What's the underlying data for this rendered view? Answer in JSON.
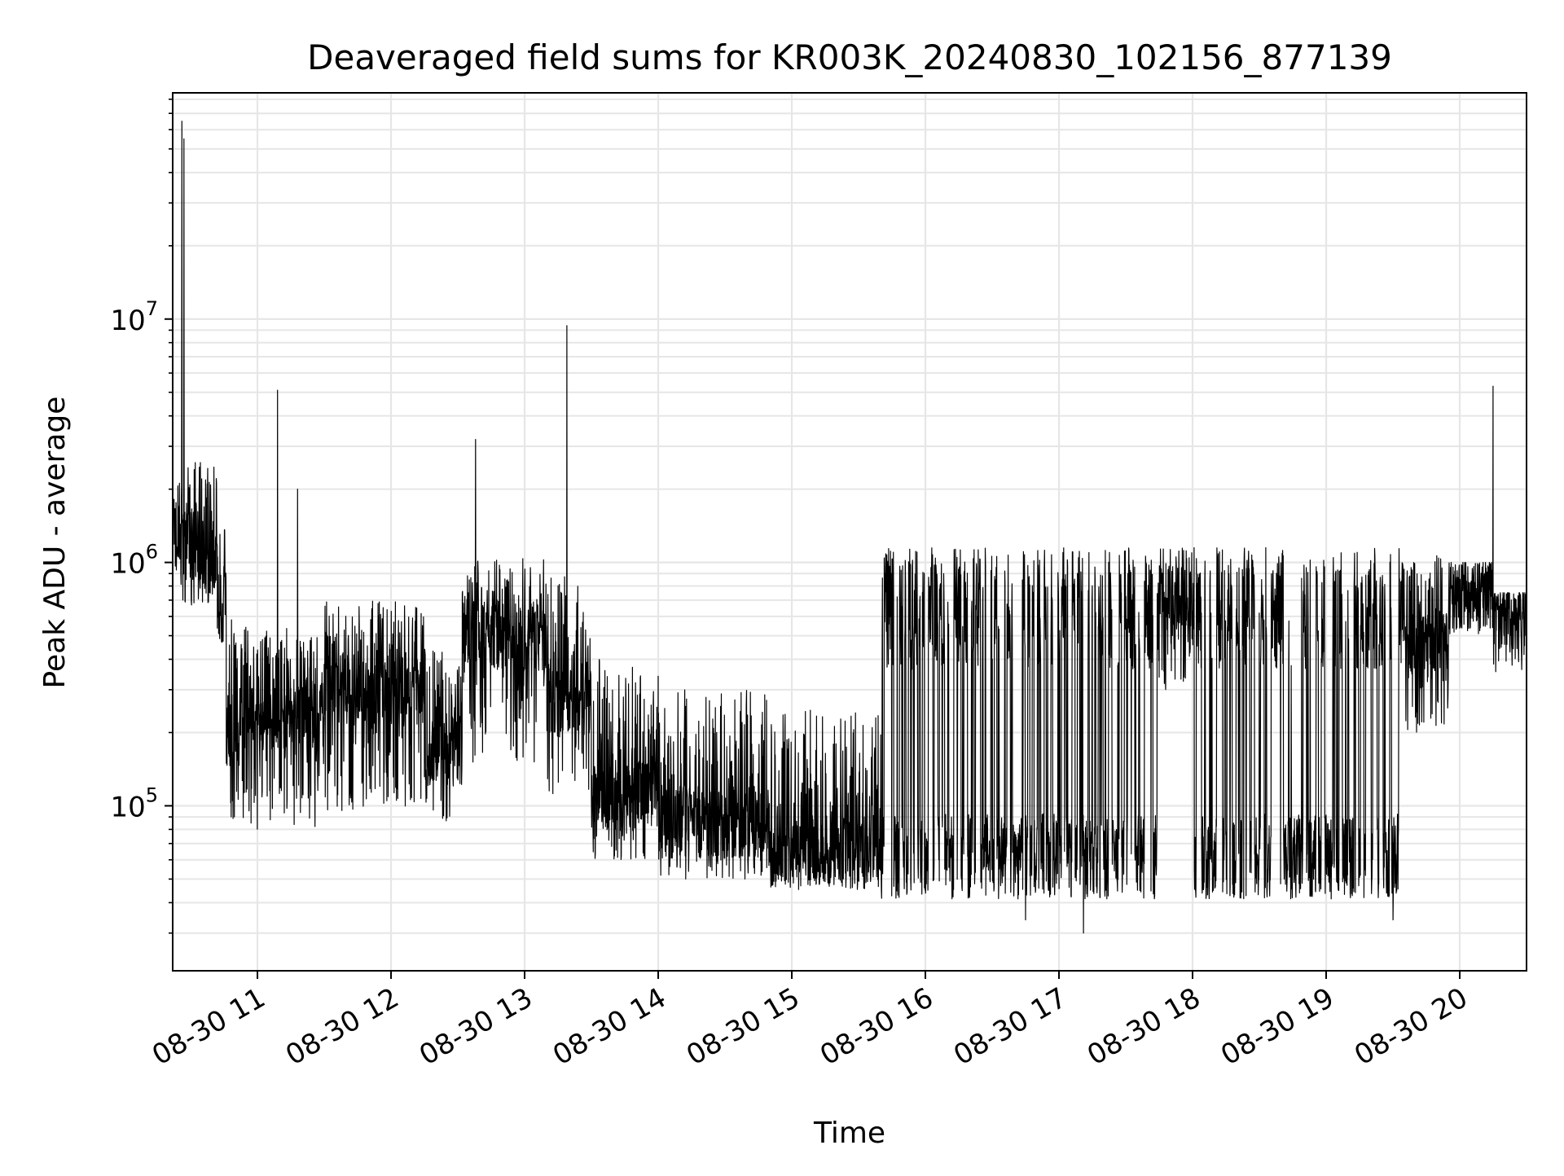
{
  "chart_data": {
    "type": "line",
    "title": "Deaveraged field sums for KR003K_20240830_102156_877139",
    "xlabel": "Time",
    "ylabel": "Peak ADU - average",
    "yscale": "log",
    "ylim": [
      21000,
      85000000
    ],
    "xlim": [
      "2024-08-30 10:21:56",
      "2024-08-30 20:30:00"
    ],
    "grid": true,
    "x_ticks": [
      {
        "time": "2024-08-30 11:00",
        "label": "08-30 11"
      },
      {
        "time": "2024-08-30 12:00",
        "label": "08-30 12"
      },
      {
        "time": "2024-08-30 13:00",
        "label": "08-30 13"
      },
      {
        "time": "2024-08-30 14:00",
        "label": "08-30 14"
      },
      {
        "time": "2024-08-30 15:00",
        "label": "08-30 15"
      },
      {
        "time": "2024-08-30 16:00",
        "label": "08-30 16"
      },
      {
        "time": "2024-08-30 17:00",
        "label": "08-30 17"
      },
      {
        "time": "2024-08-30 18:00",
        "label": "08-30 18"
      },
      {
        "time": "2024-08-30 19:00",
        "label": "08-30 19"
      },
      {
        "time": "2024-08-30 20:00",
        "label": "08-30 20"
      }
    ],
    "y_ticks": [
      {
        "value": 100000,
        "base": "10",
        "exp": "5"
      },
      {
        "value": 1000000,
        "base": "10",
        "exp": "6"
      },
      {
        "value": 10000000,
        "base": "10",
        "exp": "7"
      }
    ],
    "line_color": "#000000",
    "grid_color": "#e6e6e6",
    "series": [
      {
        "style": "envelope",
        "segments": [
          {
            "t0": "2024-08-30 10:21:56",
            "t1": "2024-08-30 10:25",
            "low": 900000,
            "base": 1300000,
            "high": 2200000
          },
          {
            "t0": "2024-08-30 10:25",
            "t1": "2024-08-30 10:31",
            "low": 650000,
            "base": 1200000,
            "high": 2600000
          },
          {
            "t0": "2024-08-30 10:31",
            "t1": "2024-08-30 10:42",
            "low": 680000,
            "base": 1100000,
            "high": 2700000
          },
          {
            "t0": "2024-08-30 10:42",
            "t1": "2024-08-30 10:46",
            "low": 450000,
            "base": 650000,
            "high": 1400000
          },
          {
            "t0": "2024-08-30 10:46",
            "t1": "2024-08-30 10:52",
            "low": 75000,
            "base": 200000,
            "high": 600000
          },
          {
            "t0": "2024-08-30 10:52",
            "t1": "2024-08-30 11:30",
            "low": 80000,
            "base": 240000,
            "high": 550000
          },
          {
            "t0": "2024-08-30 11:30",
            "t1": "2024-08-30 12:15",
            "low": 95000,
            "base": 300000,
            "high": 700000
          },
          {
            "t0": "2024-08-30 12:15",
            "t1": "2024-08-30 12:32",
            "low": 85000,
            "base": 170000,
            "high": 450000
          },
          {
            "t0": "2024-08-30 12:32",
            "t1": "2024-08-30 13:10",
            "low": 150000,
            "base": 500000,
            "high": 1050000
          },
          {
            "t0": "2024-08-30 13:10",
            "t1": "2024-08-30 13:30",
            "low": 110000,
            "base": 280000,
            "high": 900000
          },
          {
            "t0": "2024-08-30 13:30",
            "t1": "2024-08-30 14:00",
            "low": 60000,
            "base": 110000,
            "high": 400000
          },
          {
            "t0": "2024-08-30 14:00",
            "t1": "2024-08-30 14:50",
            "low": 50000,
            "base": 85000,
            "high": 300000
          },
          {
            "t0": "2024-08-30 14:50",
            "t1": "2024-08-30 15:40",
            "low": 45000,
            "base": 65000,
            "high": 250000
          },
          {
            "t0": "2024-08-30 15:40",
            "t1": "2024-08-30 17:45",
            "low": 38000,
            "base": 62000,
            "high": 1150000
          },
          {
            "t0": "2024-08-30 17:45",
            "t1": "2024-08-30 17:58",
            "low": 300000,
            "base": 700000,
            "high": 1150000
          },
          {
            "t0": "2024-08-30 17:58",
            "t1": "2024-08-30 19:35",
            "low": 40000,
            "base": 62000,
            "high": 1150000
          },
          {
            "t0": "2024-08-30 19:35",
            "t1": "2024-08-30 19:55",
            "low": 200000,
            "base": 450000,
            "high": 1100000
          },
          {
            "t0": "2024-08-30 19:55",
            "t1": "2024-08-30 20:15",
            "low": 500000,
            "base": 750000,
            "high": 1000000
          },
          {
            "t0": "2024-08-30 20:15",
            "t1": "2024-08-30 20:30",
            "low": 350000,
            "base": 600000,
            "high": 750000
          }
        ],
        "spikes": [
          {
            "time": "2024-08-30 10:26",
            "value": 65000000
          },
          {
            "time": "2024-08-30 10:27",
            "value": 55000000
          },
          {
            "time": "2024-08-30 11:09",
            "value": 5100000
          },
          {
            "time": "2024-08-30 11:18",
            "value": 2000000
          },
          {
            "time": "2024-08-30 12:38",
            "value": 3200000
          },
          {
            "time": "2024-08-30 13:19",
            "value": 9400000
          },
          {
            "time": "2024-08-30 20:15",
            "value": 5300000
          },
          {
            "time": "2024-08-30 17:11",
            "value": 30000
          },
          {
            "time": "2024-08-30 16:45",
            "value": 34000
          },
          {
            "time": "2024-08-30 19:30",
            "value": 34000
          }
        ]
      }
    ]
  }
}
